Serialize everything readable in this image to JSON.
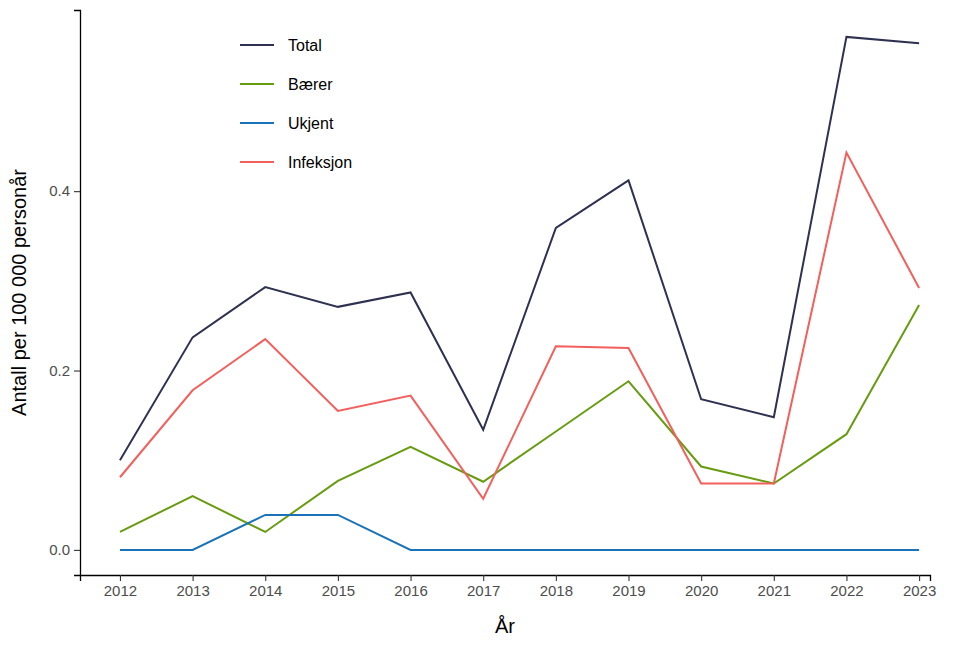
{
  "chart_data": {
    "type": "line",
    "x_label": "År",
    "y_label": "Antall per 100 000 personår",
    "x": [
      2012,
      2013,
      2014,
      2015,
      2016,
      2017,
      2018,
      2019,
      2020,
      2021,
      2022,
      2023
    ],
    "xlim": [
      2011.45,
      2023.15
    ],
    "xticks": [
      2012,
      2013,
      2014,
      2015,
      2016,
      2017,
      2018,
      2019,
      2020,
      2021,
      2022,
      2023
    ],
    "ylim": [
      -0.028,
      0.602
    ],
    "yticks": [
      {
        "value": 0,
        "label": "0.0"
      },
      0.2,
      0.4
    ],
    "legend": "top-left",
    "grid": false,
    "series": [
      {
        "name": "Total",
        "color": "#2e3150",
        "values": [
          0.1,
          0.237,
          0.293,
          0.271,
          0.287,
          0.134,
          0.359,
          0.412,
          0.168,
          0.148,
          0.572,
          0.565
        ]
      },
      {
        "name": "Bærer",
        "color": "#679c11",
        "values": [
          0.02,
          0.06,
          0.02,
          0.077,
          0.115,
          0.076,
          0.132,
          0.188,
          0.093,
          0.074,
          0.129,
          0.273
        ]
      },
      {
        "name": "Ukjent",
        "color": "#1a73b8",
        "values": [
          0,
          0,
          0.039,
          0.039,
          0,
          0,
          0,
          0,
          0,
          0,
          0,
          0
        ]
      },
      {
        "name": "Infeksjon",
        "color": "#f25f5c",
        "values": [
          0.081,
          0.178,
          0.235,
          0.155,
          0.172,
          0.057,
          0.227,
          0.225,
          0.074,
          0.074,
          0.443,
          0.292
        ]
      }
    ]
  }
}
